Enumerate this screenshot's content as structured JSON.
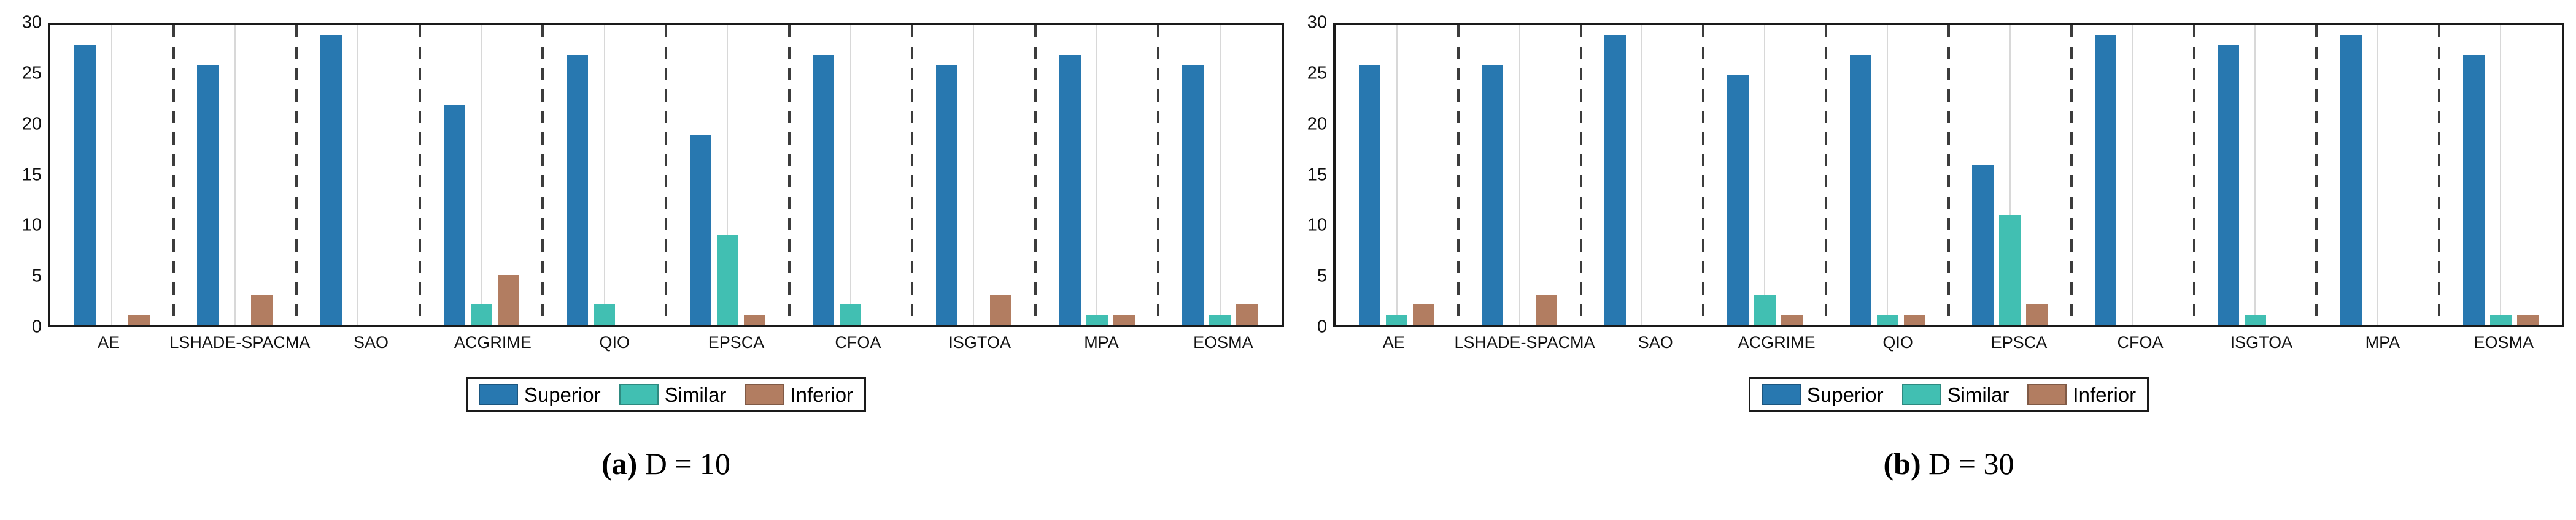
{
  "page": {
    "background": "#ffffff",
    "description_colors": {
      "superior_blue": "#2878b0",
      "similar_teal": "#41bfb2",
      "inferior_brown": "#b27d61",
      "frame": "#1a1a1a",
      "dashed_separator": "#3c3c3c",
      "category_gridline": "#d8d8d8"
    }
  },
  "legend": {
    "items": [
      {
        "label": "Superior",
        "color": "#2878b0"
      },
      {
        "label": "Similar",
        "color": "#41bfb2"
      },
      {
        "label": "Inferior",
        "color": "#b27d61"
      }
    ]
  },
  "chart_data": [
    {
      "id": "a",
      "type": "bar",
      "caption_label": "(a)",
      "caption_text": "D = 10",
      "title": "(a) D = 10",
      "xlabel": "",
      "ylabel": "",
      "ylim": [
        0,
        30
      ],
      "yticks": [
        0,
        5,
        10,
        15,
        20,
        25,
        30
      ],
      "grid": "vertical category gridlines, dashed category separators",
      "legend_position": "below",
      "categories": [
        "AE",
        "LSHADE-SPACMA",
        "SAO",
        "ACGRIME",
        "QIO",
        "EPSCA",
        "CFOA",
        "ISGTOA",
        "MPA",
        "EOSMA"
      ],
      "series": [
        {
          "name": "Superior",
          "color": "#2878b0",
          "values": [
            28,
            26,
            29,
            22,
            27,
            19,
            27,
            26,
            27,
            26
          ]
        },
        {
          "name": "Similar",
          "color": "#41bfb2",
          "values": [
            0,
            0,
            0,
            2,
            2,
            9,
            2,
            0,
            1,
            1
          ]
        },
        {
          "name": "Inferior",
          "color": "#b27d61",
          "values": [
            1,
            3,
            0,
            5,
            0,
            1,
            0,
            3,
            1,
            2
          ]
        }
      ]
    },
    {
      "id": "b",
      "type": "bar",
      "caption_label": "(b)",
      "caption_text": "D = 30",
      "title": "(b) D = 30",
      "xlabel": "",
      "ylabel": "",
      "ylim": [
        0,
        30
      ],
      "yticks": [
        0,
        5,
        10,
        15,
        20,
        25,
        30
      ],
      "grid": "vertical category gridlines, dashed category separators",
      "legend_position": "below",
      "categories": [
        "AE",
        "LSHADE-SPACMA",
        "SAO",
        "ACGRIME",
        "QIO",
        "EPSCA",
        "CFOA",
        "ISGTOA",
        "MPA",
        "EOSMA"
      ],
      "series": [
        {
          "name": "Superior",
          "color": "#2878b0",
          "values": [
            26,
            26,
            29,
            25,
            27,
            16,
            29,
            28,
            29,
            27
          ]
        },
        {
          "name": "Similar",
          "color": "#41bfb2",
          "values": [
            1,
            0,
            0,
            3,
            1,
            11,
            0,
            1,
            0,
            1
          ]
        },
        {
          "name": "Inferior",
          "color": "#b27d61",
          "values": [
            2,
            3,
            0,
            1,
            1,
            2,
            0,
            0,
            0,
            1
          ]
        }
      ]
    }
  ]
}
